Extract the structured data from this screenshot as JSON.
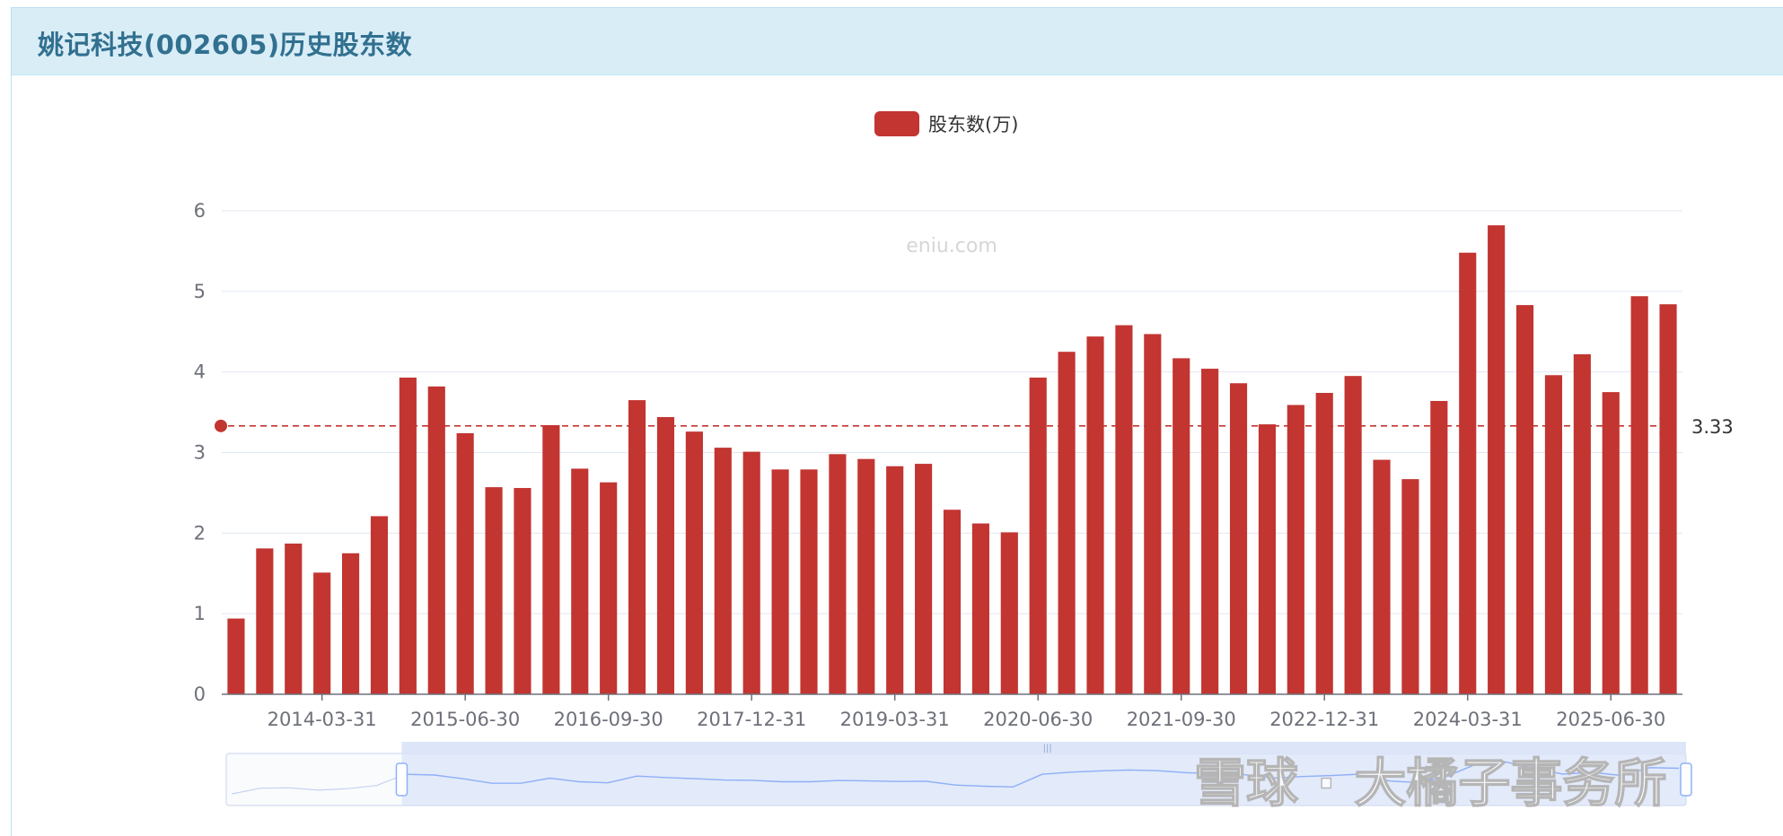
{
  "panel": {
    "title": "姚记科技(002605)历史股东数"
  },
  "watermarks": {
    "site": "eniu.com",
    "overlay": "雪球 · 大橘子事务所"
  },
  "colors": {
    "bar": "#c23531",
    "grid": "#e0e6f1",
    "zoom_fill": "#d4dff9",
    "zoom_line": "#8fb0f7"
  },
  "chart_data": {
    "type": "bar",
    "legend": "股东数(万)",
    "legend_position": "top-center",
    "ylim": [
      0,
      6
    ],
    "yticks": [
      "0",
      "1",
      "2",
      "3",
      "4",
      "5",
      "6"
    ],
    "xtick_labels": [
      "2014-03-31",
      "2015-06-30",
      "2016-09-30",
      "2017-12-31",
      "2019-03-31",
      "2020-06-30",
      "2021-09-30",
      "2022-12-31",
      "2024-03-31",
      "2025-06-30"
    ],
    "categories": [
      "2013-06-30",
      "2013-09-30",
      "2013-12-31",
      "2014-03-31",
      "2014-06-30",
      "2014-09-30",
      "2014-12-31",
      "2015-03-31",
      "2015-06-30",
      "2015-09-30",
      "2015-12-31",
      "2016-03-31",
      "2016-06-30",
      "2016-09-30",
      "2016-12-31",
      "2017-03-31",
      "2017-06-30",
      "2017-09-30",
      "2017-12-31",
      "2018-03-31",
      "2018-06-30",
      "2018-09-30",
      "2018-12-31",
      "2019-03-31",
      "2019-06-30",
      "2019-09-30",
      "2019-12-31",
      "2020-03-31",
      "2020-06-30",
      "2020-09-30",
      "2020-12-31",
      "2021-03-31",
      "2021-06-30",
      "2021-09-30",
      "2021-12-31",
      "2022-03-31",
      "2022-06-30",
      "2022-09-30",
      "2022-12-31",
      "2023-03-31",
      "2023-06-30",
      "2023-09-30",
      "2023-12-31",
      "2024-03-31",
      "2024-06-30",
      "2024-09-30",
      "2024-12-31",
      "2025-03-31",
      "2025-06-30",
      "2025-09-30",
      "2025-12-31"
    ],
    "series": [
      {
        "name": "股东数(万)",
        "values": [
          0.94,
          1.81,
          1.87,
          1.51,
          1.75,
          2.21,
          3.93,
          3.82,
          3.24,
          2.57,
          2.56,
          3.34,
          2.8,
          2.63,
          3.65,
          3.44,
          3.26,
          3.06,
          3.01,
          2.79,
          2.79,
          2.98,
          2.92,
          2.83,
          2.86,
          2.29,
          2.12,
          2.01,
          3.93,
          4.25,
          4.44,
          4.58,
          4.47,
          4.17,
          4.04,
          3.86,
          3.35,
          3.59,
          3.74,
          3.95,
          2.91,
          2.67,
          3.64,
          5.48,
          5.82,
          4.83,
          3.96,
          4.22,
          3.75,
          4.94,
          4.84
        ]
      }
    ],
    "average_line": {
      "value": 3.33,
      "label": "3.33"
    },
    "grid": true,
    "data_zoom": {
      "start_category": "2014-12-31",
      "end_category": "2025-12-31"
    }
  }
}
